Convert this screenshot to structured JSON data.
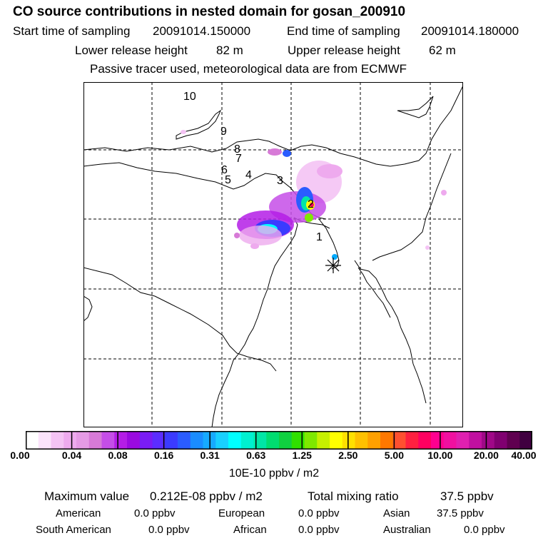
{
  "header": {
    "title": "CO  source contributions in nested domain for gosan_200910",
    "start_label": "Start time of sampling",
    "start_value": "20091014.150000",
    "end_label": "End time of sampling",
    "end_value": "20091014.180000",
    "lower_label": "Lower release height",
    "lower_value": "82 m",
    "upper_label": "Upper release height",
    "upper_value": "62 m",
    "tracer_note": "Passive tracer used, meteorological data are from ECMWF"
  },
  "map": {
    "track_labels": [
      "1",
      "2",
      "3",
      "4",
      "5",
      "6",
      "7",
      "8",
      "9",
      "10"
    ],
    "receptor_icon": "asterisk-star-icon",
    "grid": true
  },
  "colorbar": {
    "ticks": [
      "0.00",
      "0.04",
      "0.08",
      "0.16",
      "0.31",
      "0.63",
      "1.25",
      "2.50",
      "5.00",
      "10.00",
      "20.00",
      "40.00"
    ],
    "units": "10E-10 ppbv / m2",
    "colors": [
      "#ffffff",
      "#fbe3fb",
      "#f4c3f4",
      "#eeaaee",
      "#e59be5",
      "#d77ad7",
      "#c54ee8",
      "#b41de6",
      "#9a0ae0",
      "#7a1cf4",
      "#5c2dff",
      "#3b3bff",
      "#2a5cff",
      "#1a8cff",
      "#16aaff",
      "#19d0ff",
      "#00ffff",
      "#00f0d0",
      "#00e6a6",
      "#00dd70",
      "#10d040",
      "#30e000",
      "#7ee800",
      "#c6f000",
      "#ffff00",
      "#ffe000",
      "#ffc000",
      "#ffa000",
      "#ff7800",
      "#ff5030",
      "#ff2040",
      "#ff0060",
      "#ff0090",
      "#f010a0",
      "#e020b0",
      "#c010a0",
      "#a00888",
      "#800070",
      "#600050",
      "#400040"
    ]
  },
  "summary": {
    "max_label": "Maximum value",
    "max_value": "0.212E-08 ppbv / m2",
    "total_label": "Total mixing ratio",
    "total_value": "37.5 ppbv",
    "regions": [
      {
        "name": "American",
        "value": "0.0 ppbv"
      },
      {
        "name": "European",
        "value": "0.0 ppbv"
      },
      {
        "name": "Asian",
        "value": "37.5 ppbv"
      },
      {
        "name": "South American",
        "value": "0.0 ppbv"
      },
      {
        "name": "African",
        "value": "0.0 ppbv"
      },
      {
        "name": "Australian",
        "value": "0.0 ppbv"
      }
    ]
  }
}
